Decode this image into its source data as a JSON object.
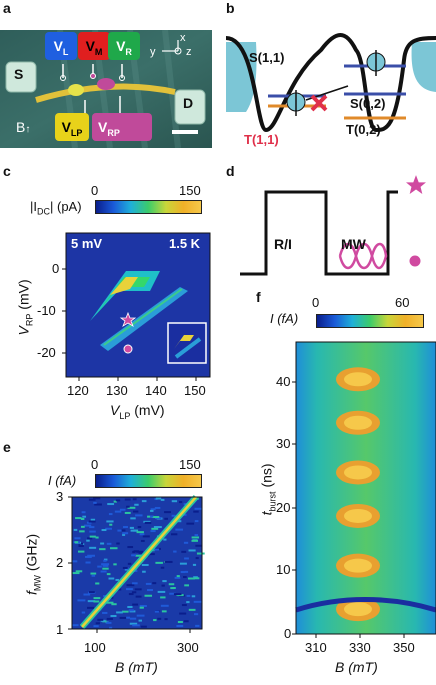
{
  "panels": {
    "a": {
      "letter": "a",
      "labels": {
        "vl": "V",
        "vl_sub": "L",
        "vm": "V",
        "vm_sub": "M",
        "vr": "V",
        "vr_sub": "R",
        "vlp": "V",
        "vlp_sub": "LP",
        "vrp": "V",
        "vrp_sub": "RP",
        "s": "S",
        "d": "D",
        "b": "B",
        "axis_x": "x",
        "axis_y": "y",
        "axis_z": "z"
      },
      "colors": {
        "vl": "#1f5fe0",
        "vm": "#e01f1f",
        "vr": "#1fa84a",
        "vlp": "#e8d21a",
        "vrp": "#c04a9a"
      }
    },
    "b": {
      "letter": "b",
      "labels": {
        "s11": "S(1,1)",
        "t11": "T(1,1)",
        "s02": "S(0,2)",
        "t02": "T(0,2)"
      }
    },
    "c": {
      "letter": "c",
      "colorbar_label": "|I",
      "colorbar_label_sub": "DC",
      "colorbar_label_tail": "| (pA)",
      "colorbar_ticks": [
        "0",
        "150"
      ],
      "annot_left": "5 mV",
      "annot_right": "1.5 K",
      "xlabel": "V",
      "xlabel_sub": "LP",
      "xlabel_tail": " (mV)",
      "ylabel": "V",
      "ylabel_sub": "RP",
      "ylabel_tail": " (mV)",
      "xticks": [
        "120",
        "130",
        "140",
        "150"
      ],
      "yticks": [
        "0",
        "-10",
        "-20"
      ]
    },
    "d": {
      "letter": "d",
      "labels": {
        "ri": "R/I",
        "mw": "MW"
      }
    },
    "e": {
      "letter": "e",
      "colorbar_label": "I (fA)",
      "colorbar_ticks": [
        "0",
        "150"
      ],
      "xlabel": "B (mT)",
      "ylabel": "f",
      "ylabel_sub": "MW",
      "ylabel_tail": " (GHz)",
      "xticks": [
        "100",
        "300"
      ],
      "yticks": [
        "3",
        "2",
        "1"
      ]
    },
    "f": {
      "letter": "f",
      "colorbar_label": "I (fA)",
      "colorbar_ticks": [
        "0",
        "60"
      ],
      "xlabel": "B (mT)",
      "ylabel": "t",
      "ylabel_sub": "burst",
      "ylabel_tail": " (ns)",
      "xticks": [
        "310",
        "330",
        "350"
      ],
      "yticks": [
        "40",
        "30",
        "20",
        "10",
        "0"
      ]
    }
  },
  "chart_data": [
    {
      "type": "heatmap",
      "panel": "c",
      "x_range": [
        115,
        152
      ],
      "y_range": [
        -24,
        10
      ],
      "color_range": [
        0,
        150
      ],
      "xlabel": "V_LP (mV)",
      "ylabel": "V_RP (mV)",
      "colorbar_label": "|I_DC| (pA)",
      "markers": [
        {
          "shape": "star",
          "x": 132,
          "y": -8
        },
        {
          "shape": "circle",
          "x": 132,
          "y": -19
        }
      ]
    },
    {
      "type": "heatmap",
      "panel": "e",
      "x_range": [
        70,
        350
      ],
      "y_range": [
        1,
        3
      ],
      "color_range": [
        0,
        150
      ],
      "xlabel": "B (mT)",
      "ylabel": "f_MW (GHz)",
      "colorbar_label": "I (fA)",
      "line": {
        "x": [
          95,
          340
        ],
        "y": [
          1.0,
          3.0
        ]
      }
    },
    {
      "type": "heatmap",
      "panel": "f",
      "x_range": [
        300,
        360
      ],
      "y_range": [
        0,
        47
      ],
      "color_range": [
        0,
        60
      ],
      "xlabel": "B (mT)",
      "ylabel": "t_burst (ns)",
      "colorbar_label": "I (fA)",
      "bright_bands_ns": [
        4,
        11,
        19,
        26,
        34,
        41
      ]
    }
  ]
}
